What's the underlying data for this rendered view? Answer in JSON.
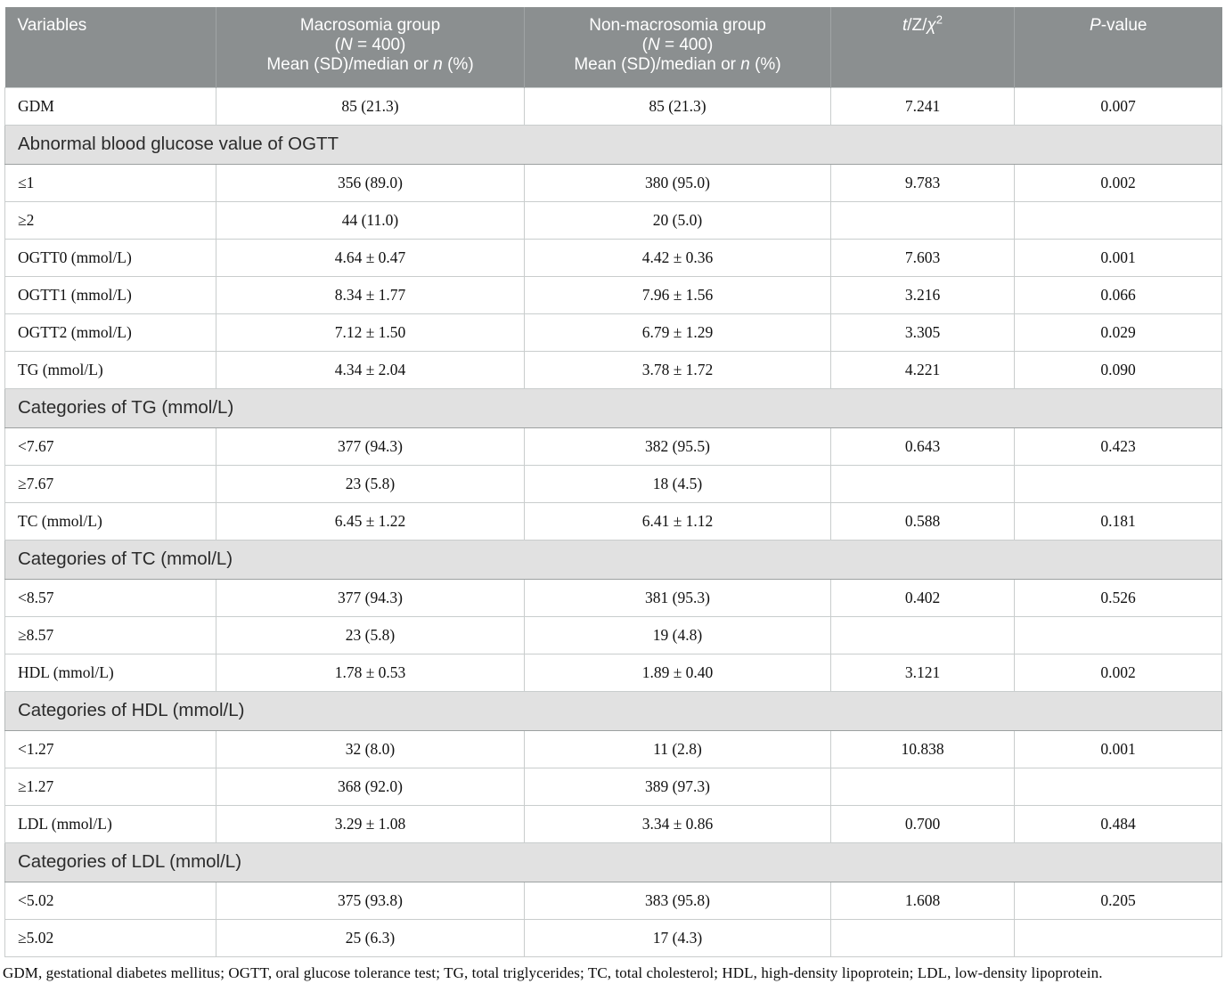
{
  "colors": {
    "header_bg": "#8b8f90",
    "header_text": "#ffffff",
    "section_bg": "#e1e1e1",
    "section_text": "#2b2b2b",
    "row_border": "#c9cdcd",
    "data_text": "#111111"
  },
  "table": {
    "header": {
      "variables": "Variables",
      "macro_line1": "Macrosomia group",
      "macro_n_pre": "(",
      "macro_n_italic": "N",
      "macro_n_post": " = 400)",
      "nonmacro_line1": "Non-macrosomia group",
      "nonmacro_n_pre": "(",
      "nonmacro_n_italic": "N",
      "nonmacro_n_post": " = 400)",
      "measure_pre": "Mean (SD)/median or ",
      "measure_italic": "n",
      "measure_post": " (%)",
      "stat_t": "t",
      "stat_mid": "/Z/",
      "stat_chi": "χ",
      "stat_sup": "2",
      "p_italic": "P",
      "p_rest": "-value"
    },
    "rows": [
      {
        "type": "data",
        "cells": [
          "GDM",
          "85 (21.3)",
          "85 (21.3)",
          "7.241",
          "0.007"
        ]
      },
      {
        "type": "section",
        "label": "Abnormal blood glucose value of OGTT"
      },
      {
        "type": "data",
        "cells": [
          "≤1",
          "356 (89.0)",
          "380 (95.0)",
          "9.783",
          "0.002"
        ]
      },
      {
        "type": "data",
        "cells": [
          "≥2",
          "44 (11.0)",
          "20 (5.0)",
          "",
          ""
        ]
      },
      {
        "type": "data",
        "cells": [
          "OGTT0 (mmol/L)",
          "4.64 ± 0.47",
          "4.42 ± 0.36",
          "7.603",
          "0.001"
        ]
      },
      {
        "type": "data",
        "cells": [
          "OGTT1 (mmol/L)",
          "8.34 ± 1.77",
          "7.96 ± 1.56",
          "3.216",
          "0.066"
        ]
      },
      {
        "type": "data",
        "cells": [
          "OGTT2 (mmol/L)",
          "7.12 ± 1.50",
          "6.79 ± 1.29",
          "3.305",
          "0.029"
        ]
      },
      {
        "type": "data",
        "cells": [
          "TG (mmol/L)",
          "4.34 ± 2.04",
          "3.78 ± 1.72",
          "4.221",
          "0.090"
        ]
      },
      {
        "type": "section",
        "label": "Categories of TG (mmol/L)"
      },
      {
        "type": "data",
        "cells": [
          "<7.67",
          "377 (94.3)",
          "382 (95.5)",
          "0.643",
          "0.423"
        ]
      },
      {
        "type": "data",
        "cells": [
          "≥7.67",
          "23 (5.8)",
          "18 (4.5)",
          "",
          ""
        ]
      },
      {
        "type": "data",
        "cells": [
          "TC (mmol/L)",
          "6.45 ± 1.22",
          "6.41 ± 1.12",
          "0.588",
          "0.181"
        ]
      },
      {
        "type": "section",
        "label": "Categories of TC (mmol/L)"
      },
      {
        "type": "data",
        "cells": [
          "<8.57",
          "377 (94.3)",
          "381 (95.3)",
          "0.402",
          "0.526"
        ]
      },
      {
        "type": "data",
        "cells": [
          "≥8.57",
          "23 (5.8)",
          "19 (4.8)",
          "",
          ""
        ]
      },
      {
        "type": "data",
        "cells": [
          "HDL (mmol/L)",
          "1.78 ± 0.53",
          "1.89 ± 0.40",
          "3.121",
          "0.002"
        ]
      },
      {
        "type": "section",
        "label": "Categories of HDL (mmol/L)"
      },
      {
        "type": "data",
        "cells": [
          "<1.27",
          "32 (8.0)",
          "11 (2.8)",
          "10.838",
          "0.001"
        ]
      },
      {
        "type": "data",
        "cells": [
          "≥1.27",
          "368 (92.0)",
          "389 (97.3)",
          "",
          ""
        ]
      },
      {
        "type": "data",
        "cells": [
          "LDL (mmol/L)",
          "3.29 ± 1.08",
          "3.34 ± 0.86",
          "0.700",
          "0.484"
        ]
      },
      {
        "type": "section",
        "label": "Categories of LDL (mmol/L)"
      },
      {
        "type": "data",
        "cells": [
          "<5.02",
          "375 (93.8)",
          "383 (95.8)",
          "1.608",
          "0.205"
        ]
      },
      {
        "type": "data",
        "cells": [
          "≥5.02",
          "25 (6.3)",
          "17 (4.3)",
          "",
          ""
        ]
      }
    ],
    "footnote": "GDM, gestational diabetes mellitus; OGTT, oral glucose tolerance test; TG, total triglycerides; TC, total cholesterol; HDL, high-density lipoprotein; LDL, low-density lipoprotein."
  }
}
